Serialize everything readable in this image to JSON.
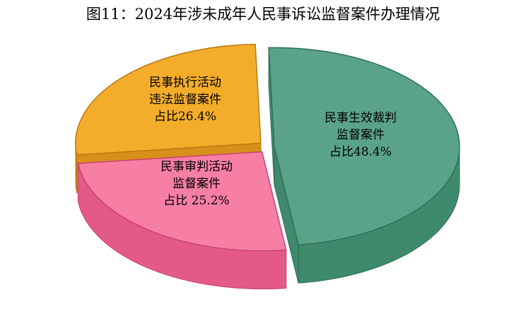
{
  "chart_data": {
    "type": "pie",
    "title": "图11：2024年涉未成年人民事诉讼监督案件办理情况",
    "slices": [
      {
        "label_lines": [
          "民事生效裁判",
          "监督案件",
          "占比48.4%"
        ],
        "value": 48.4,
        "color_top": "#5aa388",
        "color_side": "#3f8a6d",
        "color_edge": "#2f6f57"
      },
      {
        "label_lines": [
          "民事审判活动",
          "监督案件",
          "占比 25.2%"
        ],
        "value": 25.2,
        "color_top": "#f77fa4",
        "color_side": "#e45a86",
        "color_edge": "#c8436e"
      },
      {
        "label_lines": [
          "民事执行活动",
          "违法监督案件",
          "占比26.4%"
        ],
        "value": 26.4,
        "color_top": "#f4ad2a",
        "color_side": "#d8901a",
        "color_edge": "#b97812"
      }
    ]
  }
}
